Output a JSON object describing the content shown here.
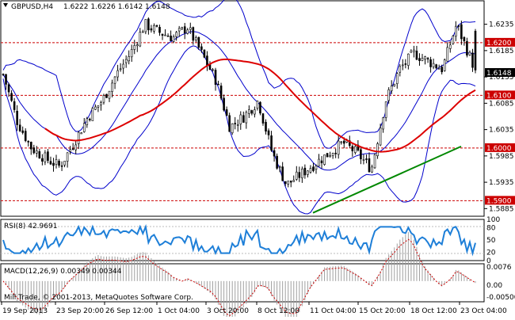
{
  "chart_header": {
    "symbol": "GBPUSD,H4",
    "ohlc": "1.6222 1.6226 1.6142 1.6148"
  },
  "price_axis": {
    "ticks": [
      "1.6235",
      "1.6185",
      "1.6135",
      "1.6085",
      "1.6035",
      "1.5985",
      "1.5935",
      "1.5885"
    ],
    "current_price": "1.6148",
    "levels": [
      "1.6200",
      "1.6100",
      "1.6000",
      "1.5900"
    ]
  },
  "rsi_panel": {
    "label": "RSI(8) 42.9691",
    "ticks": [
      "100",
      "80",
      "50",
      "20",
      "0"
    ]
  },
  "macd_panel": {
    "label": "MACD(12,26,9) 0.00349 0.00344",
    "ticks": [
      "0.0076",
      "0.00",
      "-0.00500"
    ]
  },
  "footer": {
    "copyright": "Mill Trade, © 2001-2013, MetaQuotes Software Corp."
  },
  "time_axis": [
    "19 Sep 2013",
    "23 Sep 20:00",
    "26 Sep 12:00",
    "1 Oct 04:00",
    "3 Oct 20:00",
    "8 Oct 12:00",
    "11 Oct 04:00",
    "15 Oct 20:00",
    "18 Oct 12:00",
    "23 Oct 04:00"
  ],
  "colors": {
    "background": "#ffffff",
    "candles": "#000000",
    "bollinger": "#0000cc",
    "moving_average": "#dd0000",
    "trendline": "#008800",
    "level_lines": "#cc0000",
    "rsi_line": "#1e7fd8",
    "macd_signal": "#cc0000",
    "macd_hist": "#a0a0a0",
    "price_label_bg": "#cc0000"
  },
  "chart_data": {
    "type": "candlestick",
    "symbol": "GBPUSD",
    "timeframe": "H4",
    "y_range": [
      1.5875,
      1.626
    ],
    "close_path": [
      [
        0,
        1.614
      ],
      [
        0.03,
        1.605
      ],
      [
        0.06,
        1.6
      ],
      [
        0.09,
        1.598
      ],
      [
        0.12,
        1.5965
      ],
      [
        0.15,
        1.601
      ],
      [
        0.18,
        1.606
      ],
      [
        0.21,
        1.609
      ],
      [
        0.24,
        1.614
      ],
      [
        0.27,
        1.618
      ],
      [
        0.3,
        1.6235
      ],
      [
        0.33,
        1.622
      ],
      [
        0.36,
        1.621
      ],
      [
        0.39,
        1.623
      ],
      [
        0.42,
        1.618
      ],
      [
        0.45,
        1.613
      ],
      [
        0.48,
        1.604
      ],
      [
        0.51,
        1.606
      ],
      [
        0.54,
        1.609
      ],
      [
        0.57,
        1.599
      ],
      [
        0.6,
        1.593
      ],
      [
        0.63,
        1.595
      ],
      [
        0.66,
        1.597
      ],
      [
        0.69,
        1.599
      ],
      [
        0.72,
        1.601
      ],
      [
        0.75,
        1.599
      ],
      [
        0.78,
        1.596
      ],
      [
        0.81,
        1.609
      ],
      [
        0.84,
        1.615
      ],
      [
        0.87,
        1.618
      ],
      [
        0.9,
        1.6165
      ],
      [
        0.93,
        1.615
      ],
      [
        0.96,
        1.6235
      ],
      [
        1.0,
        1.6148
      ]
    ],
    "levels": [
      1.62,
      1.61,
      1.6,
      1.59
    ],
    "rsi_period": 8,
    "rsi_last": 42.9691,
    "macd_params": [
      12,
      26,
      9
    ],
    "macd_last": 0.00349,
    "signal_last": 0.00344
  }
}
